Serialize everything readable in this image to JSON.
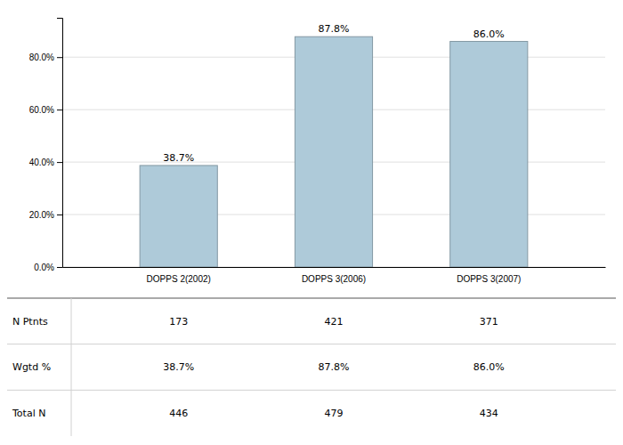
{
  "chart_data": {
    "type": "bar",
    "categories": [
      "DOPPS 2(2002)",
      "DOPPS 3(2006)",
      "DOPPS 3(2007)"
    ],
    "values": [
      38.7,
      87.8,
      86.0
    ],
    "value_labels": [
      "38.7%",
      "87.8%",
      "86.0%"
    ],
    "data_labels": true,
    "color": "#AECAD9",
    "ylim": [
      0,
      95
    ],
    "yticks": [
      {
        "value": 0,
        "label": "0.0%"
      },
      {
        "value": 20,
        "label": "20.0%"
      },
      {
        "value": 40,
        "label": "40.0%"
      },
      {
        "value": 60,
        "label": "60.0%"
      },
      {
        "value": 80,
        "label": "80.0%"
      }
    ],
    "grid": true,
    "table": {
      "row_labels": [
        "N Ptnts",
        "Wgtd %",
        "Total N"
      ],
      "rows": [
        [
          "173",
          "421",
          "371"
        ],
        [
          "38.7%",
          "87.8%",
          "86.0%"
        ],
        [
          "446",
          "479",
          "434"
        ]
      ]
    }
  }
}
